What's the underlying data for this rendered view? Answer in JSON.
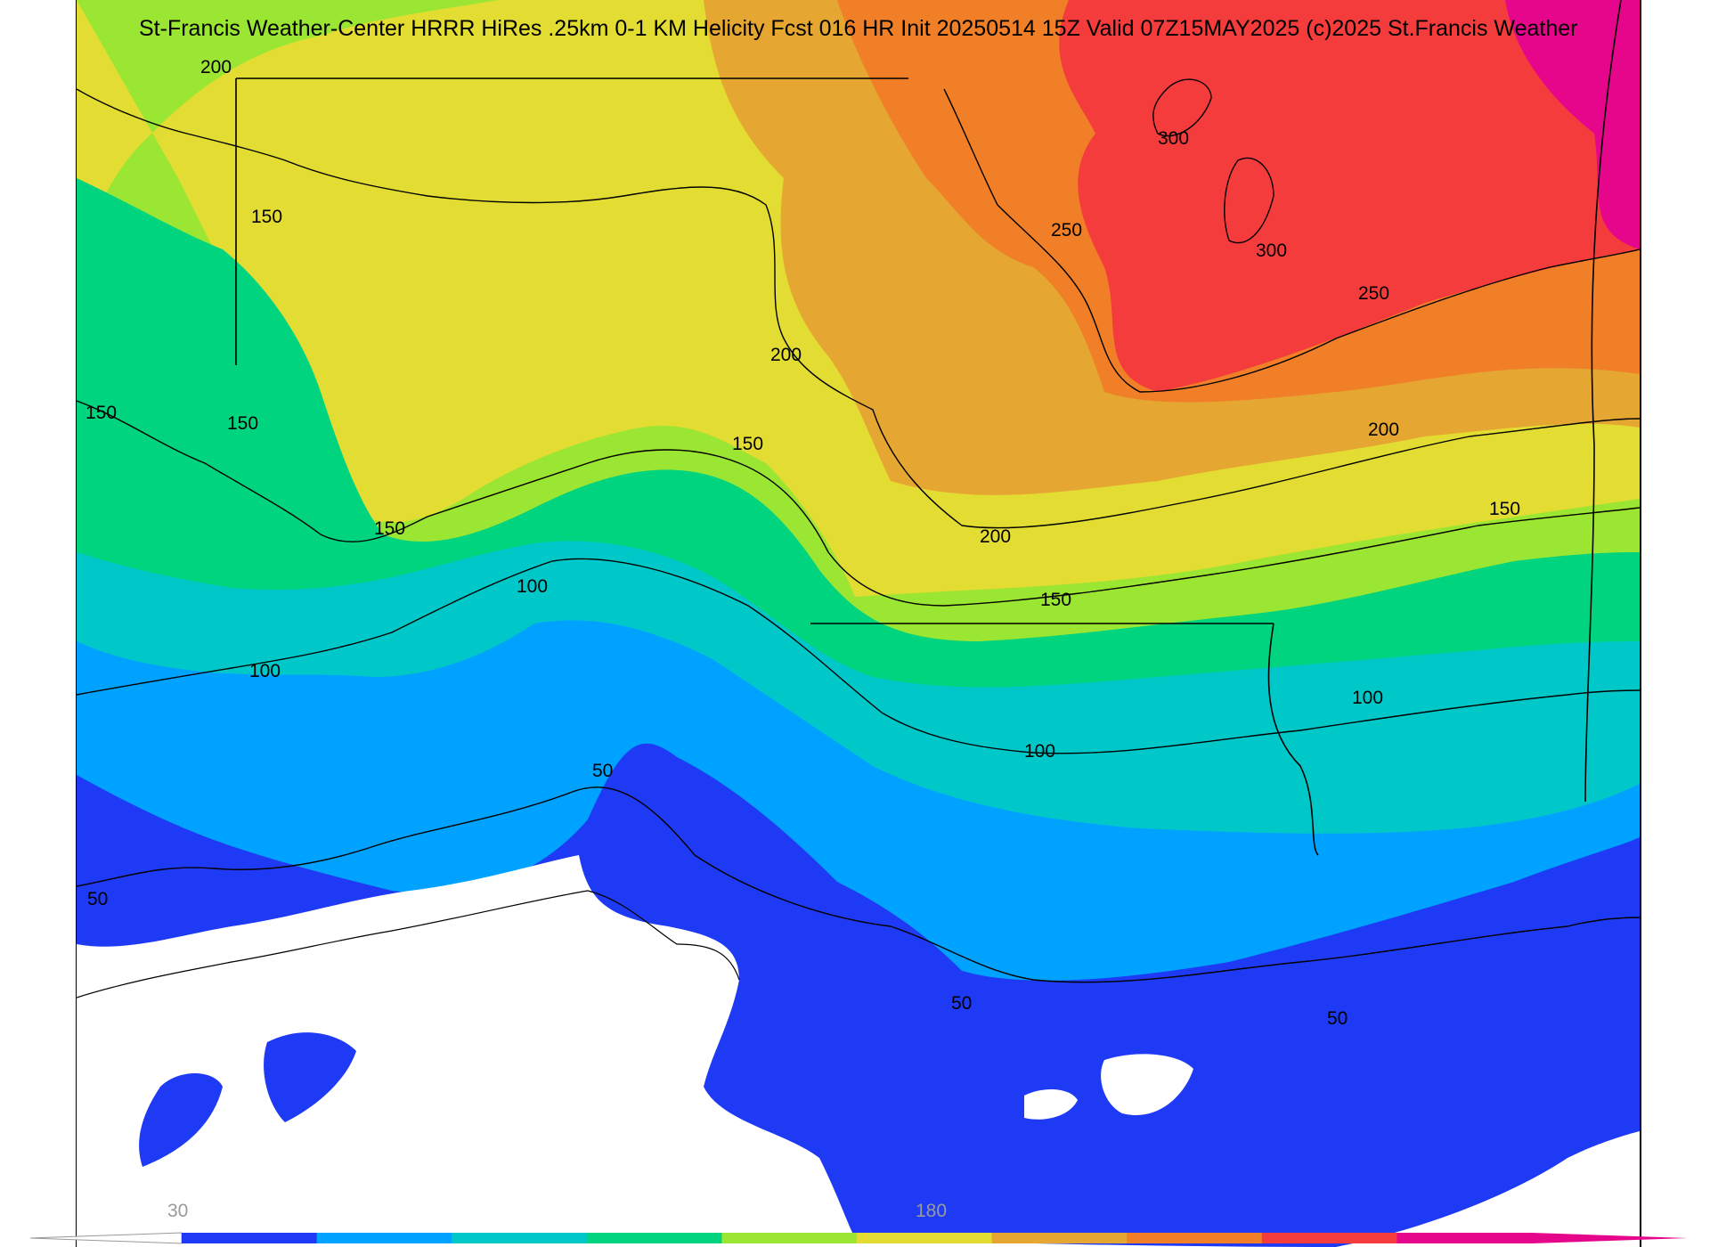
{
  "title": "St-Francis Weather-Center HRRR HiRes .25km 0-1 KM Helicity Fcst 016 HR Init 20250514 15Z  Valid 07Z15MAY2025    (c)2025 St.Francis Weather",
  "contour_labels": [
    "200",
    "150",
    "150",
    "150",
    "150",
    "100",
    "100",
    "100",
    "50",
    "50",
    "50",
    "50",
    "150",
    "200",
    "250",
    "300",
    "300",
    "250",
    "200",
    "200",
    "150",
    "150",
    "100"
  ],
  "colorbar": {
    "tick_labels": [
      "30",
      "180"
    ],
    "colors": [
      "#1e3af5",
      "#00a2ff",
      "#00c8c8",
      "#00d47f",
      "#9be632",
      "#e3dc32",
      "#e6a632",
      "#f07f28",
      "#f53c3c",
      "#e6068c"
    ]
  }
}
